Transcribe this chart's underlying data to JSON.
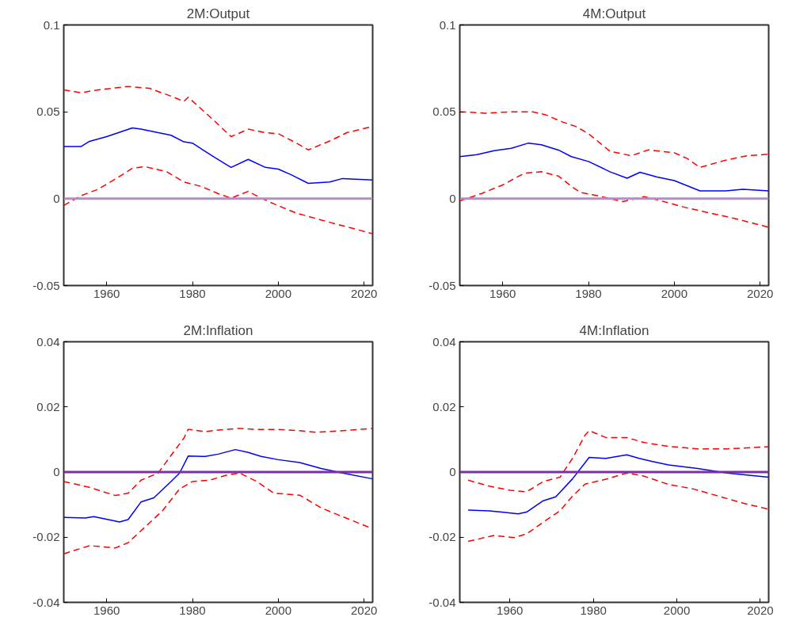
{
  "chart_data": [
    {
      "type": "line",
      "title": "2M:Output",
      "xlim": [
        1950,
        2022
      ],
      "xticks": [
        1960,
        1980,
        2000,
        2020
      ],
      "ylim": [
        -0.05,
        0.1
      ],
      "yticks": [
        -0.05,
        0,
        0.05,
        0.1
      ],
      "ref_lines": [
        {
          "axis": "y",
          "value": 0,
          "color": "#b48cc8"
        }
      ],
      "series": [
        {
          "color": "#0000ff",
          "line_style": "solid",
          "x": [
            1950,
            1954,
            1956,
            1960,
            1966,
            1968,
            1975,
            1978,
            1980,
            1985,
            1989,
            1993,
            1997,
            2000,
            2003,
            2007,
            2012,
            2015,
            2022
          ],
          "values": [
            0.03,
            0.03,
            0.033,
            0.0357,
            0.0407,
            0.04,
            0.0365,
            0.0327,
            0.032,
            0.024,
            0.018,
            0.0226,
            0.018,
            0.017,
            0.0138,
            0.0088,
            0.0096,
            0.0116,
            0.0108
          ]
        },
        {
          "color": "#ff0000",
          "line_style": "dashed",
          "x": [
            1950,
            1954,
            1958,
            1965,
            1970,
            1975,
            1978,
            1979,
            1981,
            1985,
            1989,
            1993,
            1997,
            2000,
            2004,
            2007,
            2012,
            2016,
            2022
          ],
          "values": [
            0.0626,
            0.061,
            0.0626,
            0.0646,
            0.0635,
            0.059,
            0.056,
            0.0584,
            0.054,
            0.045,
            0.0357,
            0.04,
            0.038,
            0.0374,
            0.0323,
            0.0281,
            0.0332,
            0.038,
            0.0416
          ]
        },
        {
          "color": "#ff0000",
          "line_style": "dashed",
          "x": [
            1950,
            1954,
            1958,
            1962,
            1966,
            1969,
            1974,
            1978,
            1982,
            1986,
            1989,
            1993,
            1996,
            1999,
            2004,
            2010,
            2016,
            2022
          ],
          "values": [
            -0.0039,
            0.0017,
            0.0054,
            0.0113,
            0.0175,
            0.0184,
            0.0155,
            0.0096,
            0.0071,
            0.0029,
            0.0003,
            0.0042,
            0.0003,
            -0.003,
            -0.0081,
            -0.0123,
            -0.0162,
            -0.0202
          ]
        }
      ]
    },
    {
      "type": "line",
      "title": "4M:Output",
      "xlim": [
        1950,
        2022
      ],
      "xticks": [
        1960,
        1980,
        2000,
        2020
      ],
      "ylim": [
        -0.05,
        0.1
      ],
      "yticks": [
        -0.05,
        0,
        0.05,
        0.1
      ],
      "ref_lines": [
        {
          "axis": "y",
          "value": 0,
          "color": "#b48cc8"
        }
      ],
      "series": [
        {
          "color": "#0000ff",
          "line_style": "solid",
          "x": [
            1950,
            1954,
            1958,
            1962,
            1966,
            1969,
            1973,
            1976,
            1980,
            1985,
            1989,
            1992,
            1996,
            2000,
            2006,
            2012,
            2016,
            2022
          ],
          "values": [
            0.0242,
            0.0253,
            0.0276,
            0.029,
            0.032,
            0.031,
            0.028,
            0.0242,
            0.0214,
            0.0155,
            0.0118,
            0.0152,
            0.0125,
            0.0104,
            0.0045,
            0.0045,
            0.0054,
            0.0045
          ]
        },
        {
          "color": "#ff0000",
          "line_style": "dashed",
          "x": [
            1950,
            1956,
            1962,
            1967,
            1970,
            1974,
            1977,
            1980,
            1985,
            1990,
            1994,
            2000,
            2003,
            2006,
            2012,
            2017,
            2022
          ],
          "values": [
            0.05,
            0.0492,
            0.05,
            0.05,
            0.0483,
            0.0441,
            0.0416,
            0.0374,
            0.0273,
            0.0247,
            0.0281,
            0.0264,
            0.0231,
            0.018,
            0.0222,
            0.0247,
            0.0256
          ]
        },
        {
          "color": "#ff0000",
          "line_style": "dashed",
          "x": [
            1950,
            1955,
            1960,
            1965,
            1969,
            1973,
            1976,
            1978,
            1983,
            1988,
            1993,
            1997,
            2002,
            2008,
            2014,
            2022
          ],
          "values": [
            -0.0013,
            0.0029,
            0.0079,
            0.0146,
            0.0155,
            0.013,
            0.0071,
            0.0037,
            0.0012,
            -0.0017,
            0.0012,
            -0.0013,
            -0.0047,
            -0.0081,
            -0.0114,
            -0.0165
          ]
        }
      ]
    },
    {
      "type": "line",
      "title": "2M:Inflation",
      "xlim": [
        1950,
        2022
      ],
      "xticks": [
        1960,
        1980,
        2000,
        2020
      ],
      "ylim": [
        -0.04,
        0.04
      ],
      "yticks": [
        -0.04,
        -0.02,
        0,
        0.02,
        0.04
      ],
      "ref_lines": [
        {
          "axis": "y",
          "value": 0,
          "color": "#7b2fa0"
        }
      ],
      "series": [
        {
          "color": "#0000ff",
          "line_style": "solid",
          "x": [
            1950,
            1955,
            1957,
            1963,
            1965,
            1968,
            1971,
            1975,
            1977,
            1979,
            1983,
            1986,
            1990,
            1993,
            1996,
            2000,
            2005,
            2010,
            2015,
            2022
          ],
          "values": [
            -0.0139,
            -0.0141,
            -0.0137,
            -0.0153,
            -0.0146,
            -0.0092,
            -0.0079,
            -0.0029,
            -0.0003,
            0.0049,
            0.0048,
            0.0055,
            0.0069,
            0.006,
            0.0048,
            0.0038,
            0.0029,
            0.0011,
            -0.0003,
            -0.0021
          ]
        },
        {
          "color": "#ff0000",
          "line_style": "dashed",
          "x": [
            1950,
            1956,
            1962,
            1965,
            1968,
            1972,
            1975,
            1978,
            1979,
            1983,
            1986,
            1991,
            1995,
            2000,
            2005,
            2009,
            2015,
            2022
          ],
          "values": [
            -0.0029,
            -0.0047,
            -0.0072,
            -0.0065,
            -0.0025,
            -0.0003,
            0.0051,
            0.0104,
            0.0131,
            0.0124,
            0.0129,
            0.0134,
            0.0131,
            0.0131,
            0.0127,
            0.0122,
            0.0127,
            0.0134
          ]
        },
        {
          "color": "#ff0000",
          "line_style": "dashed",
          "x": [
            1950,
            1956,
            1962,
            1965,
            1969,
            1973,
            1977,
            1980,
            1984,
            1988,
            1991,
            1995,
            1999,
            2005,
            2010,
            2015,
            2022
          ],
          "values": [
            -0.0251,
            -0.0226,
            -0.0233,
            -0.0217,
            -0.0168,
            -0.0119,
            -0.0052,
            -0.0029,
            -0.0025,
            -0.0009,
            -0.0003,
            -0.0029,
            -0.0065,
            -0.0071,
            -0.011,
            -0.0137,
            -0.0174
          ]
        }
      ]
    },
    {
      "type": "line",
      "title": "4M:Inflation",
      "xlim": [
        1948,
        2022
      ],
      "xticks": [
        1960,
        1980,
        2000,
        2020
      ],
      "ylim": [
        -0.04,
        0.04
      ],
      "yticks": [
        -0.04,
        -0.02,
        0,
        0.02,
        0.04
      ],
      "ref_lines": [
        {
          "axis": "y",
          "value": 0,
          "color": "#7b2fa0"
        }
      ],
      "series": [
        {
          "color": "#0000ff",
          "line_style": "solid",
          "x": [
            1950,
            1955,
            1958,
            1962,
            1964,
            1968,
            1971,
            1975,
            1979,
            1983,
            1988,
            1991,
            1994,
            1998,
            2005,
            2012,
            2022
          ],
          "values": [
            -0.0117,
            -0.0119,
            -0.0123,
            -0.0128,
            -0.0123,
            -0.0088,
            -0.0076,
            -0.0021,
            0.0045,
            0.0042,
            0.0053,
            0.0042,
            0.0033,
            0.0022,
            0.0011,
            -0.0003,
            -0.0016
          ]
        },
        {
          "color": "#ff0000",
          "line_style": "dashed",
          "x": [
            1950,
            1955,
            1960,
            1964,
            1968,
            1972,
            1975,
            1978,
            1979,
            1983,
            1988,
            1992,
            1998,
            2005,
            2012,
            2022
          ],
          "values": [
            -0.0025,
            -0.0043,
            -0.0056,
            -0.0061,
            -0.0029,
            -0.0016,
            0.0042,
            0.0113,
            0.0127,
            0.0106,
            0.0106,
            0.0091,
            0.0079,
            0.0071,
            0.0071,
            0.0078
          ]
        },
        {
          "color": "#ff0000",
          "line_style": "dashed",
          "x": [
            1950,
            1956,
            1961,
            1964,
            1968,
            1972,
            1975,
            1978,
            1983,
            1988,
            1992,
            1998,
            2004,
            2010,
            2016,
            2022
          ],
          "values": [
            -0.0213,
            -0.0195,
            -0.0201,
            -0.019,
            -0.0154,
            -0.0119,
            -0.0074,
            -0.0037,
            -0.0022,
            -0.0003,
            -0.0012,
            -0.0038,
            -0.0052,
            -0.0074,
            -0.0096,
            -0.0114
          ]
        }
      ]
    }
  ]
}
